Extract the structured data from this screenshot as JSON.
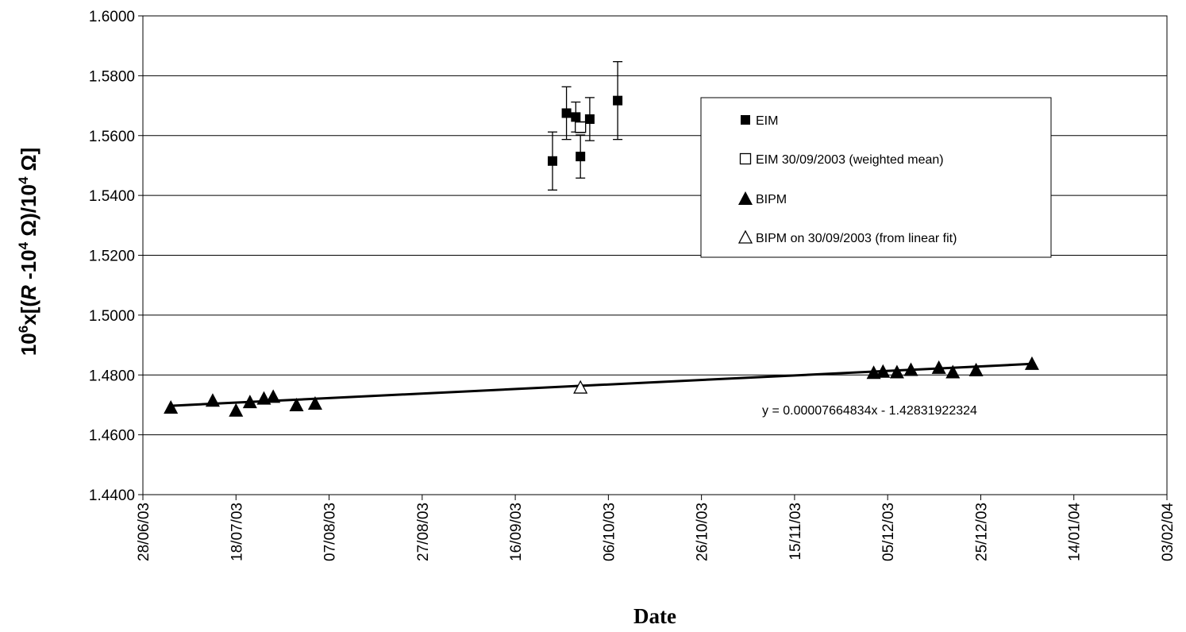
{
  "chart_data": {
    "type": "scatter",
    "xlabel": "Date",
    "ylabel": {
      "prefix": "10",
      "prefix_sup": "6",
      "mid1": "x[(",
      "italic": "R",
      "mid2": " -10",
      "sup2": "4",
      "mid3": " Ω)/10",
      "sup3": "4",
      "suffix": " Ω]"
    },
    "x_range": [
      "2003-06-28",
      "2004-02-03"
    ],
    "x_ticks": [
      {
        "date": "2003-06-28",
        "label": "28/06/03"
      },
      {
        "date": "2003-07-18",
        "label": "18/07/03"
      },
      {
        "date": "2003-08-07",
        "label": "07/08/03"
      },
      {
        "date": "2003-08-27",
        "label": "27/08/03"
      },
      {
        "date": "2003-09-16",
        "label": "16/09/03"
      },
      {
        "date": "2003-10-06",
        "label": "06/10/03"
      },
      {
        "date": "2003-10-26",
        "label": "26/10/03"
      },
      {
        "date": "2003-11-15",
        "label": "15/11/03"
      },
      {
        "date": "2003-12-05",
        "label": "05/12/03"
      },
      {
        "date": "2003-12-25",
        "label": "25/12/03"
      },
      {
        "date": "2004-01-14",
        "label": "14/01/04"
      },
      {
        "date": "2004-02-03",
        "label": "03/02/04"
      }
    ],
    "ylim": [
      1.44,
      1.6
    ],
    "y_ticks": [
      {
        "value": 1.44,
        "label": "1.4400"
      },
      {
        "value": 1.46,
        "label": "1.4600"
      },
      {
        "value": 1.48,
        "label": "1.4800"
      },
      {
        "value": 1.5,
        "label": "1.5000"
      },
      {
        "value": 1.52,
        "label": "1.5200"
      },
      {
        "value": 1.54,
        "label": "1.5400"
      },
      {
        "value": 1.56,
        "label": "1.5600"
      },
      {
        "value": 1.58,
        "label": "1.5800"
      },
      {
        "value": 1.6,
        "label": "1.6000"
      }
    ],
    "grid": "horizontal",
    "legend_position": "top-right",
    "series": [
      {
        "name": "EIM",
        "marker": "filled-square",
        "color": "#000000",
        "points": [
          {
            "x": "2003-09-24",
            "y": 1.5515,
            "err": 0.0097
          },
          {
            "x": "2003-09-27",
            "y": 1.5675,
            "err": 0.0088
          },
          {
            "x": "2003-09-29",
            "y": 1.5662,
            "err": 0.005
          },
          {
            "x": "2003-09-30",
            "y": 1.553,
            "err": 0.0072
          },
          {
            "x": "2003-10-02",
            "y": 1.5655,
            "err": 0.0072
          },
          {
            "x": "2003-10-08",
            "y": 1.5717,
            "err": 0.013
          }
        ]
      },
      {
        "name": "EIM 30/09/2003  (weighted mean)",
        "marker": "open-square",
        "color": "#000000",
        "points": [
          {
            "x": "2003-09-30",
            "y": 1.5628,
            "err": 0.0018
          }
        ]
      },
      {
        "name": "BIPM",
        "marker": "filled-triangle",
        "color": "#000000",
        "points": [
          {
            "x": "2003-07-04",
            "y": 1.4692
          },
          {
            "x": "2003-07-13",
            "y": 1.4715
          },
          {
            "x": "2003-07-18",
            "y": 1.4682
          },
          {
            "x": "2003-07-21",
            "y": 1.471
          },
          {
            "x": "2003-07-24",
            "y": 1.4722
          },
          {
            "x": "2003-07-26",
            "y": 1.4728
          },
          {
            "x": "2003-07-31",
            "y": 1.47
          },
          {
            "x": "2003-08-04",
            "y": 1.4705
          },
          {
            "x": "2003-12-02",
            "y": 1.4808
          },
          {
            "x": "2003-12-04",
            "y": 1.4812
          },
          {
            "x": "2003-12-07",
            "y": 1.481
          },
          {
            "x": "2003-12-10",
            "y": 1.4818
          },
          {
            "x": "2003-12-16",
            "y": 1.4825
          },
          {
            "x": "2003-12-19",
            "y": 1.481
          },
          {
            "x": "2003-12-24",
            "y": 1.4817
          },
          {
            "x": "2004-01-05",
            "y": 1.4838
          }
        ]
      },
      {
        "name": "BIPM on 30/09/2003 (from linear fit)",
        "marker": "open-triangle",
        "color": "#000000",
        "points": [
          {
            "x": "2003-09-30",
            "y": 1.4758
          }
        ]
      }
    ],
    "trendline": {
      "from": {
        "x": "2003-07-04",
        "y": 1.4697
      },
      "to": {
        "x": "2004-01-05",
        "y": 1.4837
      },
      "equation": "y = 0.00007664834x - 1.42831922324"
    }
  }
}
